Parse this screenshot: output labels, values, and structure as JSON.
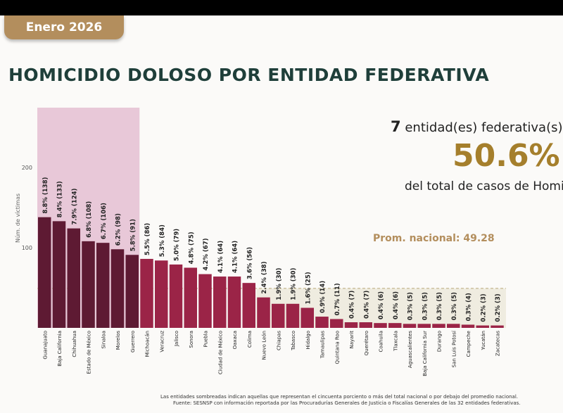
{
  "header": {
    "period": "Enero 2026",
    "title": "HOMICIDIO DOLOSO POR ENTIDAD FEDERATIVA"
  },
  "summary": {
    "count": "7",
    "count_text": "entidad(es) federativa(s)",
    "percent": "50.6%",
    "total_text": "del total de casos de Homi",
    "average_label": "Prom. nacional: 49.28"
  },
  "footer": {
    "note": "Las entidades sombreadas indican aquellas que representan el cincuenta porciento o más del total nacional o por debajo del promedio nacional.",
    "source": "Fuente: SESNSP con información reportada por las Procuradurías Generales de Justicia o Fiscalías Generales de las 32 entidades federativas."
  },
  "colors": {
    "top_bar": "#5e1a33",
    "bar": "#9b2447",
    "top_region": "#e8c8d8",
    "below_avg_region": "#efece0",
    "accent": "#b38e5d"
  },
  "chart_data": {
    "type": "bar",
    "ylabel": "Núm. de víctimas",
    "ylim": [
      0,
      205
    ],
    "yticks": [
      100,
      200
    ],
    "average": 49.28,
    "grid": false,
    "categories": [
      "Guanajuato",
      "Baja California",
      "Chihuahua",
      "Estado de México",
      "Sinaloa",
      "Morelos",
      "Guerrero",
      "Michoacán",
      "Veracruz",
      "Jalisco",
      "Sonora",
      "Puebla",
      "Ciudad de México",
      "Oaxaca",
      "Colima",
      "Nuevo León",
      "Chiapas",
      "Tabasco",
      "Hidalgo",
      "Tamaulipas",
      "Quintana Roo",
      "Nayarit",
      "Querétaro",
      "Coahuila",
      "Tlaxcala",
      "Aguascalientes",
      "Baja California Sur",
      "Durango",
      "San Luis Potosí",
      "Campeche",
      "Yucatán",
      "Zacatecas"
    ],
    "values": [
      138,
      133,
      124,
      108,
      106,
      98,
      91,
      86,
      84,
      79,
      75,
      67,
      64,
      64,
      56,
      38,
      30,
      30,
      25,
      14,
      11,
      7,
      7,
      6,
      6,
      5,
      5,
      5,
      5,
      4,
      3,
      3
    ],
    "labels": [
      "8.8% (138)",
      "8.4% (133)",
      "7.9% (124)",
      "6.8% (108)",
      "6.7% (106)",
      "6.2% (98)",
      "5.8% (91)",
      "5.5% (86)",
      "5.3% (84)",
      "5.0% (79)",
      "4.8% (75)",
      "4.2% (67)",
      "4.1% (64)",
      "4.1% (64)",
      "3.6% (56)",
      "2.4% (38)",
      "1.9% (30)",
      "1.9% (30)",
      "1.6% (25)",
      "0.9% (14)",
      "0.7% (11)",
      "0.4% (7)",
      "0.4% (7)",
      "0.4% (6)",
      "0.4% (6)",
      "0.3% (5)",
      "0.3% (5)",
      "0.3% (5)",
      "0.3% (5)",
      "0.3% (4)",
      "0.2% (3)",
      "0.2% (3)"
    ],
    "highlighted_top_count": 7,
    "below_average_from": "Nuevo León"
  }
}
